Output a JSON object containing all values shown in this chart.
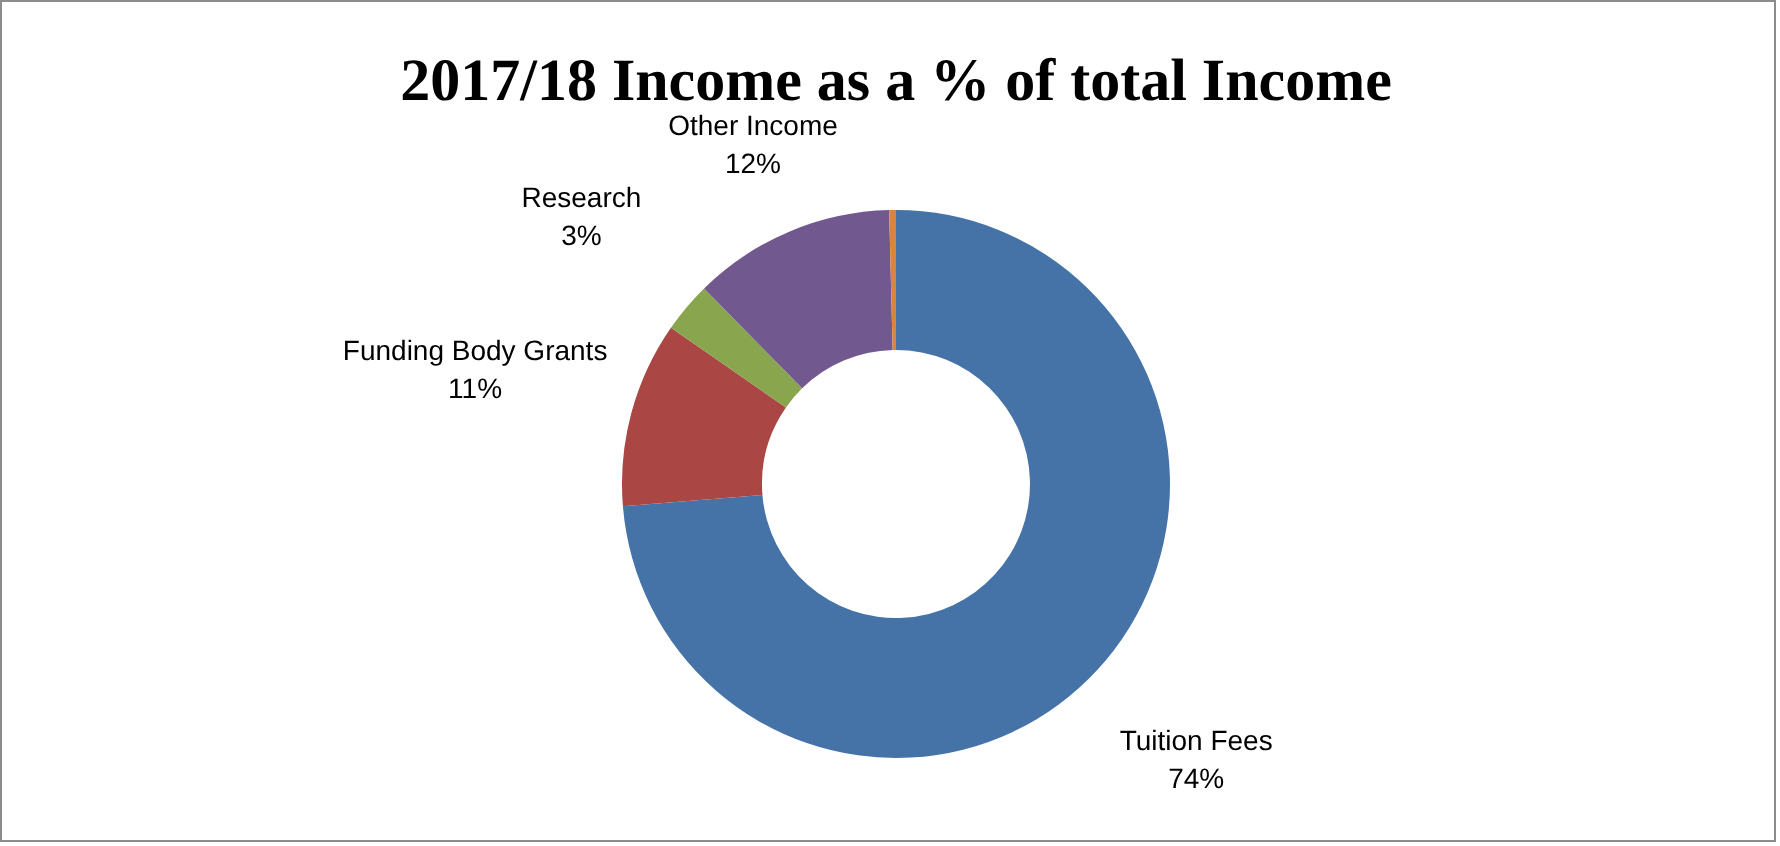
{
  "chart_data": {
    "type": "donut",
    "title": "2017/18 Income as a % of total Income",
    "categories": [
      "Tuition Fees",
      "Funding Body Grants",
      "Research",
      "Other Income",
      null
    ],
    "values": [
      74,
      11,
      3,
      12,
      0.4
    ],
    "colors": [
      "#4572a7",
      "#aa4643",
      "#89a54e",
      "#71588f",
      "#db843d"
    ],
    "value_labels": [
      "74%",
      "11%",
      "3%",
      "12%",
      null
    ]
  }
}
